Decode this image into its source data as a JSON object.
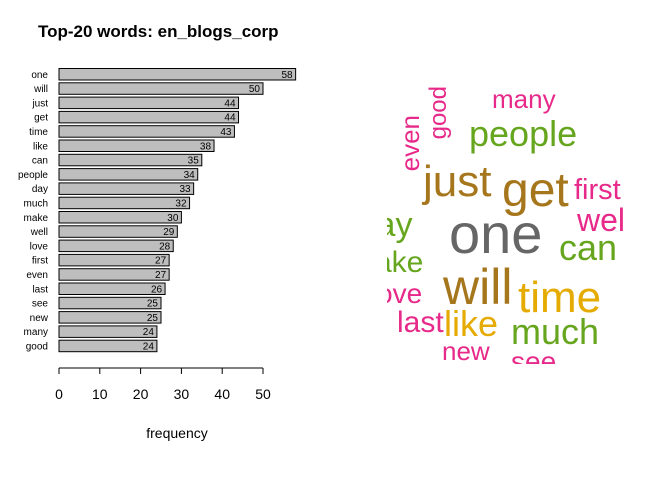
{
  "chart_data": {
    "type": "bar",
    "orientation": "horizontal",
    "title": "Top-20 words: en_blogs_corp",
    "xlabel": "frequency",
    "ylabel": "",
    "xlim": [
      0,
      58
    ],
    "x_ticks": [
      "0",
      "10",
      "20",
      "30",
      "40",
      "50"
    ],
    "grid": false,
    "bar_color": "#bebebe",
    "categories": [
      "one",
      "will",
      "just",
      "get",
      "time",
      "like",
      "can",
      "people",
      "day",
      "much",
      "make",
      "well",
      "love",
      "first",
      "even",
      "last",
      "see",
      "new",
      "many",
      "good"
    ],
    "values": [
      58,
      50,
      44,
      44,
      43,
      38,
      35,
      34,
      33,
      32,
      30,
      29,
      28,
      27,
      27,
      26,
      25,
      25,
      24,
      24
    ],
    "value_labels": [
      "58",
      "50",
      "44",
      "44",
      "43",
      "38",
      "35",
      "34",
      "33",
      "32",
      "30",
      "29",
      "28",
      "27",
      "27",
      "26",
      "25",
      "25",
      "24",
      "24"
    ]
  },
  "word_cloud": {
    "colors": {
      "gray": "#666666",
      "brown": "#a6761d",
      "orange": "#e6ab02",
      "green": "#66a61e",
      "pink": "#e7298a"
    },
    "words": [
      {
        "text": "one",
        "color": "#666666"
      },
      {
        "text": "will",
        "color": "#a6761d"
      },
      {
        "text": "time",
        "color": "#e6ab02"
      },
      {
        "text": "get",
        "color": "#a6761d"
      },
      {
        "text": "just",
        "color": "#a6761d"
      },
      {
        "text": "people",
        "color": "#66a61e"
      },
      {
        "text": "much",
        "color": "#66a61e"
      },
      {
        "text": "can",
        "color": "#66a61e"
      },
      {
        "text": "like",
        "color": "#e6ab02"
      },
      {
        "text": "first",
        "color": "#e7298a"
      },
      {
        "text": "wel",
        "color": "#e7298a"
      },
      {
        "text": "lay",
        "color": "#66a61e"
      },
      {
        "text": "ake",
        "color": "#66a61e"
      },
      {
        "text": "ove",
        "color": "#e7298a"
      },
      {
        "text": "last",
        "color": "#e7298a"
      },
      {
        "text": "new",
        "color": "#e7298a"
      },
      {
        "text": "see",
        "color": "#e7298a"
      },
      {
        "text": "many",
        "color": "#e7298a"
      },
      {
        "text": "even",
        "color": "#e7298a"
      },
      {
        "text": "good",
        "color": "#e7298a"
      }
    ]
  }
}
